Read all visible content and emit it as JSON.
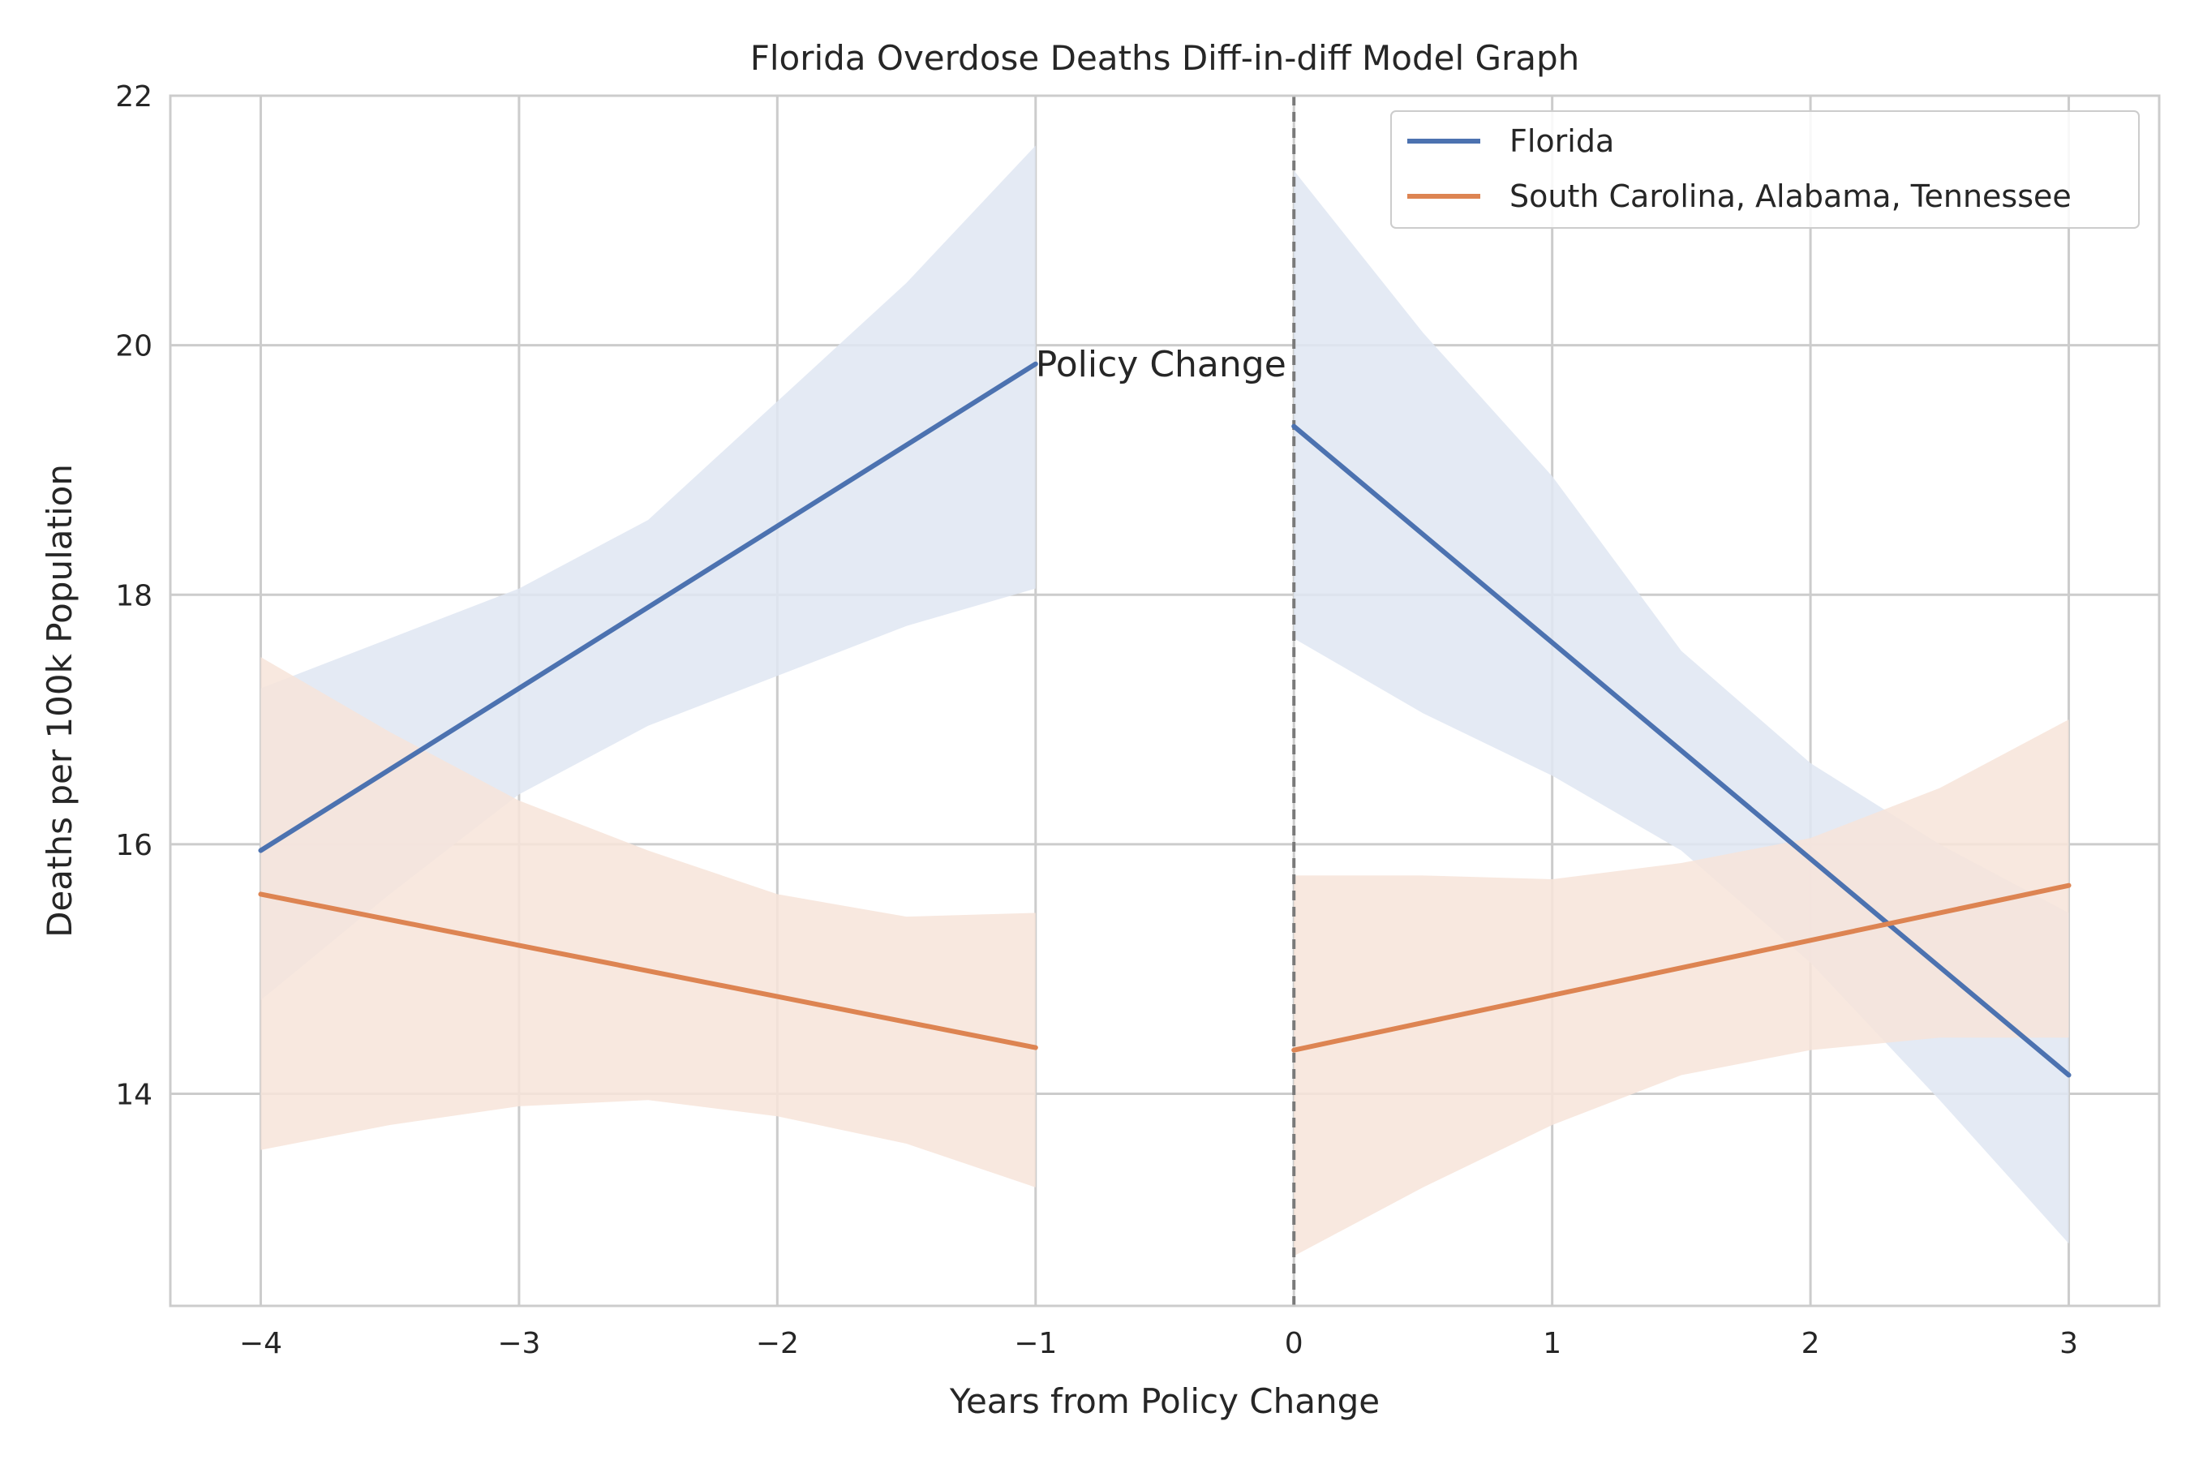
{
  "chart_data": {
    "type": "line",
    "title": "Florida Overdose Deaths Diff-in-diff Model Graph",
    "xlabel": "Years from Policy Change",
    "ylabel": "Deaths per 100k Population",
    "xlim": [
      -4.35,
      3.35
    ],
    "ylim": [
      12.3,
      22.0
    ],
    "xticks": [
      -4,
      -3,
      -2,
      -1,
      0,
      1,
      2,
      3
    ],
    "xtick_labels": [
      "−4",
      "−3",
      "−2",
      "−1",
      "0",
      "1",
      "2",
      "3"
    ],
    "yticks": [
      14,
      16,
      18,
      20,
      22
    ],
    "ytick_labels": [
      "14",
      "16",
      "18",
      "20",
      "22"
    ],
    "grid": true,
    "legend_position": "top-right",
    "policy_line_x": 0,
    "annotation": {
      "text": "Policy Change",
      "x": -1,
      "y": 19.75
    },
    "series": [
      {
        "name": "Florida",
        "color": "#4c72b0",
        "band_color": "#dfe6f2",
        "segments": [
          {
            "x": [
              -4,
              -1
            ],
            "y": [
              15.95,
              19.85
            ],
            "band_x": [
              -4,
              -3.5,
              -3,
              -2.5,
              -2,
              -1.5,
              -1
            ],
            "band_lower": [
              14.75,
              15.6,
              16.4,
              16.95,
              17.35,
              17.75,
              18.05
            ],
            "band_upper": [
              17.25,
              17.65,
              18.05,
              18.6,
              19.55,
              20.5,
              21.6
            ]
          },
          {
            "x": [
              0,
              3
            ],
            "y": [
              19.35,
              14.15
            ],
            "band_x": [
              0,
              0.5,
              1,
              1.5,
              2,
              2.5,
              3
            ],
            "band_lower": [
              17.65,
              17.05,
              16.55,
              15.95,
              15.05,
              13.95,
              12.8
            ],
            "band_upper": [
              21.4,
              20.1,
              18.95,
              17.55,
              16.65,
              16.0,
              15.45
            ]
          }
        ]
      },
      {
        "name": "South Carolina, Alabama, Tennessee",
        "color": "#dd8452",
        "band_color": "#f7e4d9",
        "segments": [
          {
            "x": [
              -4,
              -1
            ],
            "y": [
              15.6,
              14.37
            ],
            "band_x": [
              -4,
              -3.5,
              -3,
              -2.5,
              -2,
              -1.5,
              -1
            ],
            "band_lower": [
              13.55,
              13.75,
              13.9,
              13.95,
              13.82,
              13.6,
              13.25
            ],
            "band_upper": [
              17.5,
              16.9,
              16.35,
              15.95,
              15.6,
              15.42,
              15.45
            ]
          },
          {
            "x": [
              0,
              3
            ],
            "y": [
              14.35,
              15.67
            ],
            "band_x": [
              0,
              0.5,
              1,
              1.5,
              2,
              2.5,
              3
            ],
            "band_lower": [
              12.7,
              13.25,
              13.75,
              14.15,
              14.35,
              14.45,
              14.45
            ],
            "band_upper": [
              15.75,
              15.75,
              15.72,
              15.85,
              16.05,
              16.45,
              17.0
            ]
          }
        ]
      }
    ]
  }
}
